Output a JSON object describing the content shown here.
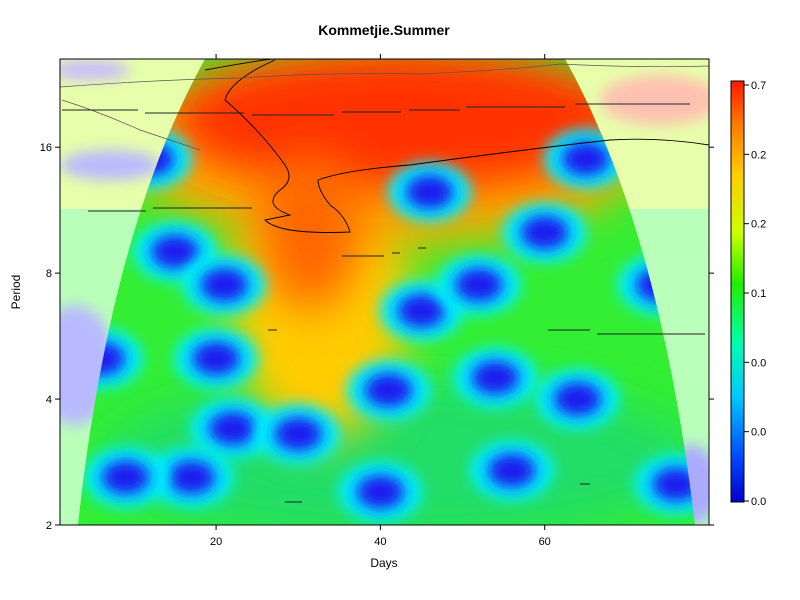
{
  "chart_data": {
    "type": "heatmap",
    "title": "Kommetjie.Summer",
    "xlabel": "Days",
    "ylabel": "Period",
    "xlim": [
      1,
      80
    ],
    "ylim": [
      2,
      26
    ],
    "y_scale": "log2",
    "x_ticks": [
      20,
      40,
      60
    ],
    "y_ticks": [
      2,
      4,
      8,
      16
    ],
    "colorbar": {
      "ticks": [
        "0.7",
        "0.2",
        "0.2",
        "0.1",
        "0.0",
        "0.0",
        "0.0"
      ],
      "colors": [
        "#0000cc",
        "#0044ff",
        "#00c8ff",
        "#00ffaa",
        "#22ee00",
        "#ccff00",
        "#ffcc00",
        "#ff7700",
        "#ff1a00"
      ]
    },
    "cone_of_influence": true,
    "high_power_band": {
      "period_range": [
        12,
        26
      ],
      "day_range": [
        15,
        65
      ]
    },
    "low_power_spots": [
      {
        "day": 12,
        "period": 15
      },
      {
        "day": 15,
        "period": 9
      },
      {
        "day": 21,
        "period": 7.5
      },
      {
        "day": 20,
        "period": 5
      },
      {
        "day": 22,
        "period": 3.4
      },
      {
        "day": 17,
        "period": 2.6
      },
      {
        "day": 30,
        "period": 3.3
      },
      {
        "day": 41,
        "period": 4.2
      },
      {
        "day": 46,
        "period": 12.5
      },
      {
        "day": 45,
        "period": 6.5
      },
      {
        "day": 52,
        "period": 7.5
      },
      {
        "day": 54,
        "period": 4.5
      },
      {
        "day": 56,
        "period": 2.7
      },
      {
        "day": 60,
        "period": 10
      },
      {
        "day": 65,
        "period": 15
      },
      {
        "day": 64,
        "period": 4
      },
      {
        "day": 74,
        "period": 7.5
      },
      {
        "day": 76,
        "period": 2.5
      },
      {
        "day": 6,
        "period": 5
      },
      {
        "day": 9,
        "period": 2.6
      },
      {
        "day": 40,
        "period": 2.4
      }
    ]
  }
}
